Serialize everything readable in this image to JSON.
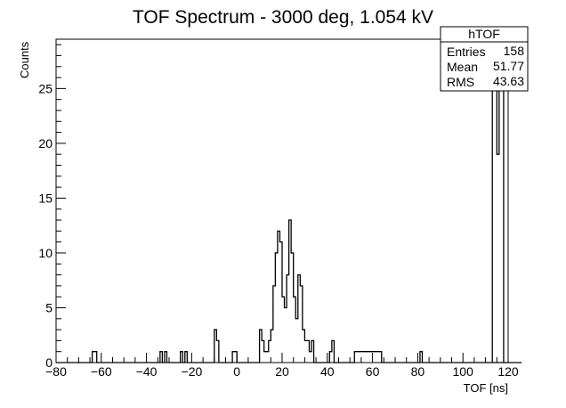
{
  "chart_data": {
    "type": "histogram",
    "title": "TOF Spectrum - 3000 deg, 1.054 kV",
    "xlabel": "TOF [ns]",
    "ylabel": "Counts",
    "xlim": [
      -80,
      120
    ],
    "ylim": [
      0,
      29.5
    ],
    "bin_width": 1,
    "bin_start": -80,
    "x_ticks": [
      -80,
      -60,
      -40,
      -20,
      0,
      20,
      40,
      60,
      80,
      100,
      120
    ],
    "y_ticks": [
      0,
      5,
      10,
      15,
      20,
      25
    ],
    "counts": [
      0,
      0,
      0,
      0,
      0,
      0,
      0,
      0,
      0,
      0,
      0,
      0,
      0,
      0,
      0,
      0,
      1,
      1,
      0,
      0,
      0,
      0,
      0,
      0,
      0,
      0,
      0,
      0,
      0,
      0,
      0,
      0,
      0,
      0,
      0,
      0,
      0,
      0,
      0,
      0,
      0,
      0,
      0,
      0,
      0,
      0,
      1,
      0,
      1,
      0,
      0,
      0,
      0,
      0,
      0,
      1,
      0,
      1,
      0,
      0,
      0,
      0,
      0,
      0,
      0,
      0,
      0,
      0,
      0,
      0,
      3,
      2,
      0,
      0,
      0,
      0,
      0,
      0,
      1,
      1,
      0,
      0,
      0,
      0,
      0,
      0,
      0,
      0,
      0,
      0,
      3,
      2,
      1,
      1,
      2,
      3,
      7,
      10,
      12,
      11,
      6,
      5,
      8,
      13,
      10,
      6,
      4,
      8,
      7,
      3,
      2,
      2,
      1,
      2,
      0,
      0,
      0,
      0,
      0,
      0,
      0,
      1,
      2,
      0,
      0,
      0,
      0,
      0,
      0,
      0,
      0,
      0,
      1,
      1,
      1,
      1,
      1,
      1,
      1,
      1,
      1,
      1,
      1,
      1,
      0,
      0,
      0,
      0,
      0,
      0,
      0,
      0,
      0,
      0,
      0,
      0,
      0,
      0,
      0,
      0,
      0,
      1,
      0,
      0,
      0,
      0,
      0,
      0,
      0,
      0,
      0,
      0,
      0,
      0,
      0,
      0,
      0,
      0,
      0,
      0,
      0,
      0,
      0,
      0,
      0,
      0,
      0,
      0,
      0,
      0,
      0,
      0,
      0,
      0,
      0,
      0,
      0,
      0,
      0,
      0,
      0,
      0,
      0,
      0,
      0,
      0
    ],
    "overflow_bins": [
      {
        "x_low": 113,
        "x_high": 114,
        "count": 31
      },
      {
        "x_low": 114,
        "x_high": 115,
        "count": 31
      },
      {
        "x_low": 115,
        "x_high": 116,
        "count": 19
      },
      {
        "x_low": 116,
        "x_high": 117,
        "count": 31
      },
      {
        "x_low": 117,
        "x_high": 118,
        "count": 31
      }
    ],
    "grid": false,
    "legend": "none",
    "line_color": "#000000",
    "stats_box": {
      "placement": "top-right",
      "title": "hTOF",
      "rows": [
        {
          "label": "Entries",
          "value": "158"
        },
        {
          "label": "Mean",
          "value": "51.77"
        },
        {
          "label": "RMS",
          "value": "43.63"
        }
      ]
    }
  }
}
